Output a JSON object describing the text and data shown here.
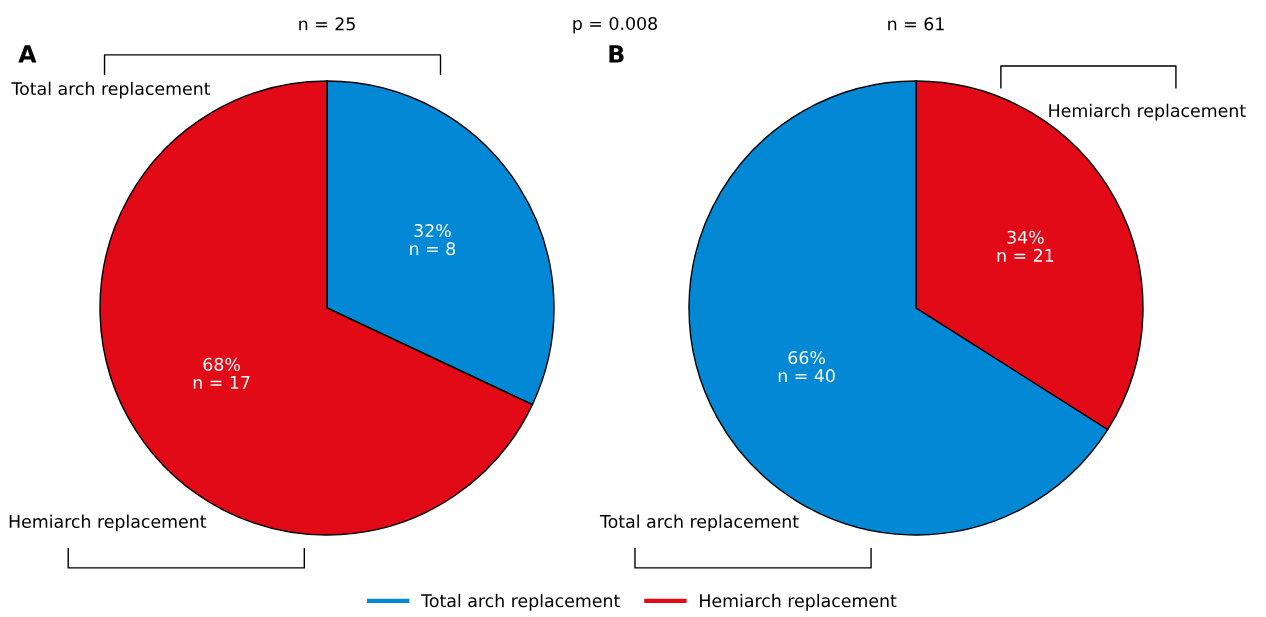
{
  "chart_data": [
    {
      "type": "pie",
      "title": "A",
      "subtitle": "n = 25",
      "categories": [
        "Total arch replacement",
        "Hemiarch replacement"
      ],
      "values": [
        32,
        68
      ],
      "colors": [
        "#0288d4",
        "#e20a17"
      ],
      "value_labels": [
        "32%\nn = 8",
        "68%\nn = 17"
      ],
      "annotations": [
        "p = 0.008"
      ],
      "legend": "bottom"
    },
    {
      "type": "pie",
      "title": "B",
      "subtitle": "n = 61",
      "categories": [
        "Hemiarch replacement",
        "Total arch replacement"
      ],
      "values": [
        34,
        66
      ],
      "colors": [
        "#e20a17",
        "#0288d4"
      ],
      "value_labels": [
        "34%\nn = 21",
        "66%\nn = 40"
      ]
    }
  ]
}
